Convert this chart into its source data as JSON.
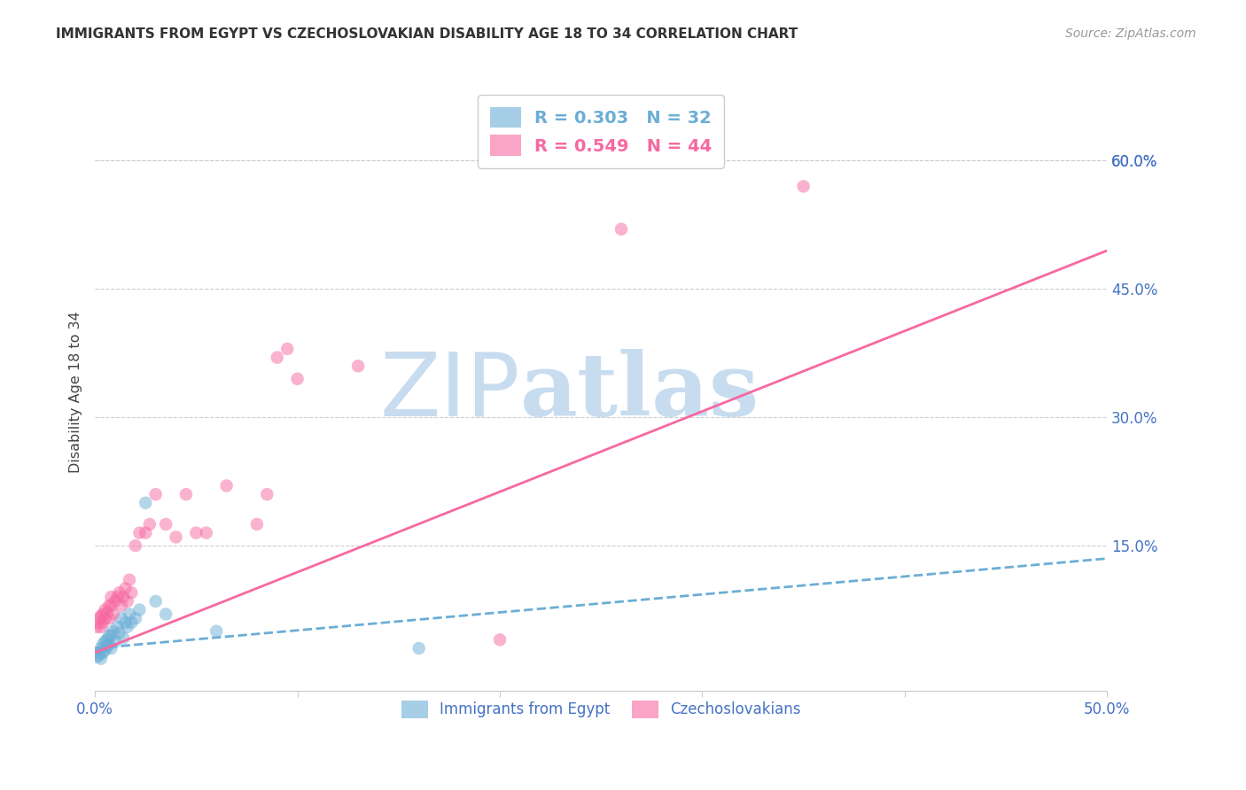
{
  "title": "IMMIGRANTS FROM EGYPT VS CZECHOSLOVAKIAN DISABILITY AGE 18 TO 34 CORRELATION CHART",
  "source": "Source: ZipAtlas.com",
  "ylabel": "Disability Age 18 to 34",
  "legend_labels": [
    "Immigrants from Egypt",
    "Czechoslovakians"
  ],
  "legend_r_n": [
    {
      "R": "0.303",
      "N": "32",
      "color": "#6baed6"
    },
    {
      "R": "0.549",
      "N": "44",
      "color": "#f768a1"
    }
  ],
  "blue_color": "#6baed6",
  "pink_color": "#f768a1",
  "title_color": "#333333",
  "axis_label_color": "#4472c4",
  "watermark_text": "ZIPatlas",
  "watermark_color": "#c8dcf0",
  "xmin": 0.0,
  "xmax": 0.5,
  "ymin": -0.02,
  "ymax": 0.68,
  "yticks_right": [
    0.15,
    0.3,
    0.45,
    0.6
  ],
  "grid_color": "#cccccc",
  "blue_trend_x": [
    0.0,
    0.5
  ],
  "blue_trend_y": [
    0.03,
    0.135
  ],
  "pink_trend_x": [
    0.0,
    0.5
  ],
  "pink_trend_y": [
    0.025,
    0.495
  ],
  "blue_scatter_x": [
    0.001,
    0.002,
    0.002,
    0.003,
    0.003,
    0.004,
    0.004,
    0.005,
    0.005,
    0.006,
    0.006,
    0.007,
    0.007,
    0.008,
    0.008,
    0.009,
    0.01,
    0.011,
    0.012,
    0.013,
    0.014,
    0.015,
    0.016,
    0.017,
    0.018,
    0.02,
    0.022,
    0.025,
    0.03,
    0.035,
    0.06,
    0.16
  ],
  "blue_scatter_y": [
    0.02,
    0.022,
    0.025,
    0.018,
    0.03,
    0.025,
    0.035,
    0.028,
    0.038,
    0.032,
    0.04,
    0.035,
    0.045,
    0.03,
    0.045,
    0.05,
    0.038,
    0.055,
    0.048,
    0.065,
    0.042,
    0.06,
    0.055,
    0.07,
    0.06,
    0.065,
    0.075,
    0.2,
    0.085,
    0.07,
    0.05,
    0.03
  ],
  "pink_scatter_x": [
    0.001,
    0.002,
    0.002,
    0.003,
    0.003,
    0.004,
    0.004,
    0.005,
    0.005,
    0.006,
    0.007,
    0.007,
    0.008,
    0.008,
    0.009,
    0.01,
    0.011,
    0.012,
    0.013,
    0.014,
    0.015,
    0.016,
    0.017,
    0.018,
    0.02,
    0.022,
    0.025,
    0.027,
    0.03,
    0.035,
    0.04,
    0.045,
    0.05,
    0.055,
    0.065,
    0.08,
    0.085,
    0.09,
    0.095,
    0.1,
    0.13,
    0.2,
    0.26,
    0.35
  ],
  "pink_scatter_y": [
    0.055,
    0.06,
    0.065,
    0.055,
    0.068,
    0.06,
    0.07,
    0.065,
    0.075,
    0.072,
    0.08,
    0.065,
    0.08,
    0.09,
    0.07,
    0.085,
    0.09,
    0.095,
    0.08,
    0.09,
    0.1,
    0.085,
    0.11,
    0.095,
    0.15,
    0.165,
    0.165,
    0.175,
    0.21,
    0.175,
    0.16,
    0.21,
    0.165,
    0.165,
    0.22,
    0.175,
    0.21,
    0.37,
    0.38,
    0.345,
    0.36,
    0.04,
    0.52,
    0.57
  ]
}
